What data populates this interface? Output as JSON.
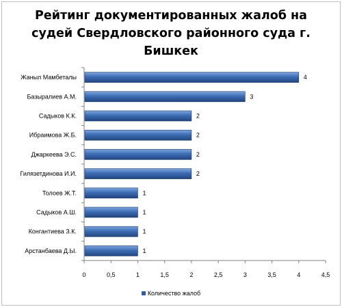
{
  "chart_data": {
    "type": "bar",
    "orientation": "horizontal",
    "title": "Рейтинг документированных жалоб на судей Свердловского районного суда г. Бишкек",
    "categories": [
      "Жаныл Мамбеталы",
      "Базыралиев А.М.",
      "Садыков К.К.",
      "Ибраимова Ж.Б.",
      "Джаркеева Э.С.",
      "Гилязетдинова  И.И.",
      "Толоев Ж.Т.",
      "Садыков А.Ш.",
      "Конгантиева З.К.",
      "Арстанбаева Д.Ы."
    ],
    "series": [
      {
        "name": "Количество жалоб",
        "values": [
          4,
          3,
          2,
          2,
          2,
          2,
          1,
          1,
          1,
          1
        ]
      }
    ],
    "data_labels": [
      "4",
      "3",
      "2",
      "2",
      "2",
      "2",
      "1",
      "1",
      "1",
      "1"
    ],
    "xlim": [
      0,
      4.5
    ],
    "x_ticks": [
      "0",
      "0,5",
      "1",
      "1,5",
      "2",
      "2,5",
      "3",
      "3,5",
      "4",
      "4,5"
    ],
    "legend_position": "bottom",
    "grid": false,
    "bar_color": "#2f5fa5"
  }
}
